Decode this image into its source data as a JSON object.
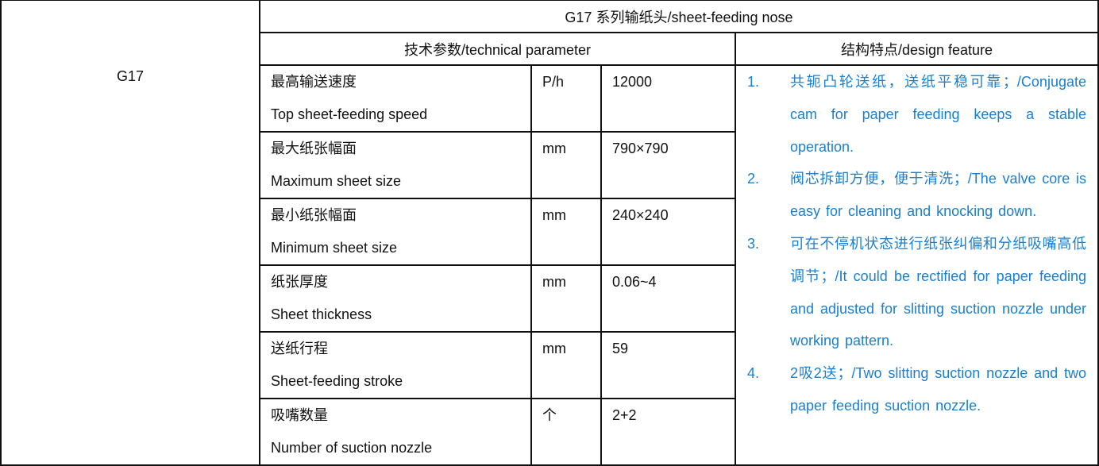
{
  "model": "G17",
  "title": "G17 系列输纸头/sheet-feeding nose",
  "headers": {
    "technical": "技术参数/technical parameter",
    "design": "结构特点/design feature"
  },
  "parameters": [
    {
      "zh": "最高输送速度",
      "en": "Top sheet-feeding speed",
      "unit": "P/h",
      "value": "12000"
    },
    {
      "zh": "最大纸张幅面",
      "en": "Maximum sheet size",
      "unit": "mm",
      "value": "790×790"
    },
    {
      "zh": "最小纸张幅面",
      "en": "Minimum sheet size",
      "unit": "mm",
      "value": "240×240"
    },
    {
      "zh": "纸张厚度",
      "en": "Sheet thickness",
      "unit": "mm",
      "value": "0.06~4"
    },
    {
      "zh": "送纸行程",
      "en": "Sheet-feeding stroke",
      "unit": "mm",
      "value": "59"
    },
    {
      "zh": "吸嘴数量",
      "en": "Number of suction nozzle",
      "unit": "个",
      "value": "2+2"
    }
  ],
  "features": [
    {
      "num": "1.",
      "text": "共轭凸轮送纸，送纸平稳可靠；/Conjugate cam for paper feeding keeps a stable operation."
    },
    {
      "num": "2.",
      "text": "阀芯拆卸方便，便于清洗；/The valve core is easy for cleaning and knocking down."
    },
    {
      "num": "3.",
      "text": "可在不停机状态进行纸张纠偏和分纸吸嘴高低调节；/It could be rectified for paper feeding and adjusted for slitting suction nozzle under working pattern."
    },
    {
      "num": "4.",
      "text": "2吸2送；/Two slitting suction nozzle and two paper feeding suction nozzle."
    }
  ],
  "colors": {
    "feature_text": "#1a7fd0",
    "border": "#111111"
  }
}
